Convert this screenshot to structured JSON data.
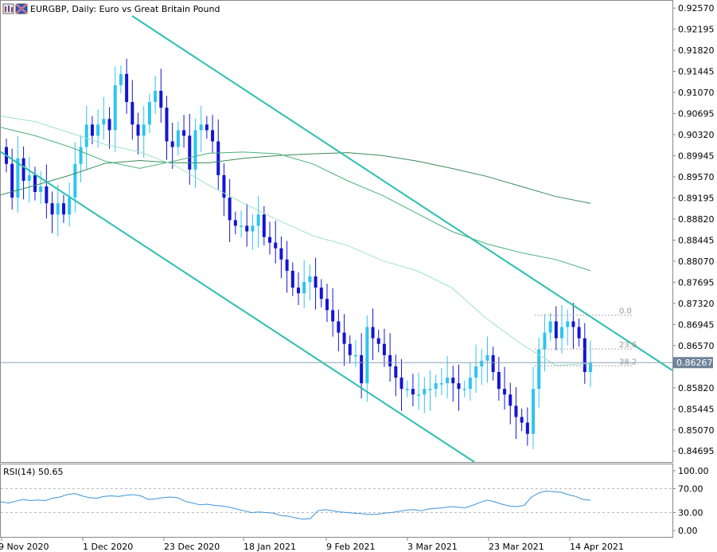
{
  "header": {
    "title": "EURGBP, Daily:  Euro vs Great Britain Pound"
  },
  "colors": {
    "bull": "#2ec4f0",
    "bear": "#1414d4",
    "channel": "#2bbfae",
    "ma_fast": "#9ee2c4",
    "ma_mid": "#4bb27a",
    "ma_slow": "#3a8a5a",
    "rsi": "#3b94d9",
    "grid_border": "#888888",
    "fib": "#aaaaaa",
    "price_line": "#8aa4bc",
    "price_tag_bg": "#6f8499"
  },
  "chart_data": [
    {
      "type": "candlestick",
      "symbol": "EURGBP",
      "timeframe": "Daily",
      "ylim": [
        0.845,
        0.927
      ],
      "yticks": [
        "0.92570",
        "0.92195",
        "0.91820",
        "0.91445",
        "0.91070",
        "0.90695",
        "0.90320",
        "0.89945",
        "0.89570",
        "0.89195",
        "0.88820",
        "0.88445",
        "0.88070",
        "0.87695",
        "0.87320",
        "0.86945",
        "0.86570",
        "0.85820",
        "0.85445",
        "0.85070",
        "0.84695"
      ],
      "xticks": [
        "9 Nov 2020",
        "1 Dec 2020",
        "23 Dec 2020",
        "18 Jan 2021",
        "9 Feb 2021",
        "3 Mar 2021",
        "23 Mar 2021",
        "14 Apr 2021"
      ],
      "current_price": 0.86267,
      "current_price_label": "0.86267",
      "closes": [
        0.898,
        0.892,
        0.899,
        0.895,
        0.896,
        0.893,
        0.894,
        0.891,
        0.889,
        0.891,
        0.889,
        0.892,
        0.898,
        0.901,
        0.905,
        0.903,
        0.905,
        0.906,
        0.904,
        0.912,
        0.914,
        0.909,
        0.905,
        0.903,
        0.905,
        0.909,
        0.911,
        0.908,
        0.902,
        0.901,
        0.904,
        0.903,
        0.897,
        0.904,
        0.905,
        0.904,
        0.902,
        0.896,
        0.892,
        0.888,
        0.887,
        0.887,
        0.886,
        0.887,
        0.889,
        0.885,
        0.884,
        0.883,
        0.881,
        0.879,
        0.876,
        0.875,
        0.877,
        0.878,
        0.876,
        0.874,
        0.872,
        0.87,
        0.868,
        0.866,
        0.864,
        0.864,
        0.859,
        0.869,
        0.867,
        0.866,
        0.864,
        0.862,
        0.86,
        0.858,
        0.858,
        0.857,
        0.857,
        0.858,
        0.858,
        0.859,
        0.859,
        0.86,
        0.859,
        0.858,
        0.858,
        0.86,
        0.862,
        0.863,
        0.864,
        0.861,
        0.858,
        0.857,
        0.855,
        0.853,
        0.852,
        0.85,
        0.858,
        0.865,
        0.868,
        0.87,
        0.867,
        0.869,
        0.87,
        0.869,
        0.867,
        0.861,
        0.8627
      ],
      "ma_fast": [
        0.9065,
        0.9055,
        0.9035,
        0.9015,
        0.9001,
        0.8978,
        0.8942,
        0.891,
        0.888,
        0.8852,
        0.8835,
        0.8808,
        0.879,
        0.876,
        0.8705,
        0.866,
        0.8622,
        0.8625
      ],
      "ma_mid": [
        0.9045,
        0.903,
        0.901,
        0.8985,
        0.8972,
        0.8985,
        0.8999,
        0.9001,
        0.8998,
        0.898,
        0.895,
        0.8924,
        0.8892,
        0.886,
        0.8838,
        0.8822,
        0.881,
        0.879
      ],
      "ma_slow": [
        0.8925,
        0.8942,
        0.896,
        0.8981,
        0.8986,
        0.8982,
        0.8982,
        0.899,
        0.8995,
        0.8998,
        0.9,
        0.8995,
        0.8985,
        0.8972,
        0.8958,
        0.894,
        0.8922,
        0.891
      ],
      "fib_levels": [
        {
          "label": "0.0",
          "value": 0.8711
        },
        {
          "label": "23.6",
          "value": 0.8651
        },
        {
          "label": "38.2",
          "value": 0.8621
        }
      ]
    },
    {
      "type": "line",
      "name": "RSI(14)",
      "label": "RSI(14) 50.65",
      "ylim": [
        0,
        100
      ],
      "yticks": [
        "100.00",
        "70.00",
        "30.00",
        "0.00"
      ],
      "levels": [
        70,
        30
      ],
      "values": [
        48,
        46,
        49,
        52,
        50,
        51,
        50,
        54,
        56,
        60,
        62,
        58,
        55,
        54,
        57,
        58,
        57,
        59,
        60,
        58,
        52,
        53,
        55,
        56,
        55,
        49,
        46,
        43,
        44,
        42,
        41,
        39,
        36,
        33,
        30,
        31,
        30,
        29,
        25,
        24,
        21,
        19,
        20,
        33,
        35,
        33,
        31,
        30,
        29,
        28,
        27,
        27,
        29,
        30,
        32,
        34,
        35,
        33,
        36,
        37,
        38,
        40,
        39,
        38,
        42,
        47,
        51,
        48,
        44,
        41,
        40,
        42,
        56,
        63,
        66,
        65,
        64,
        60,
        57,
        52,
        50.65
      ]
    }
  ]
}
